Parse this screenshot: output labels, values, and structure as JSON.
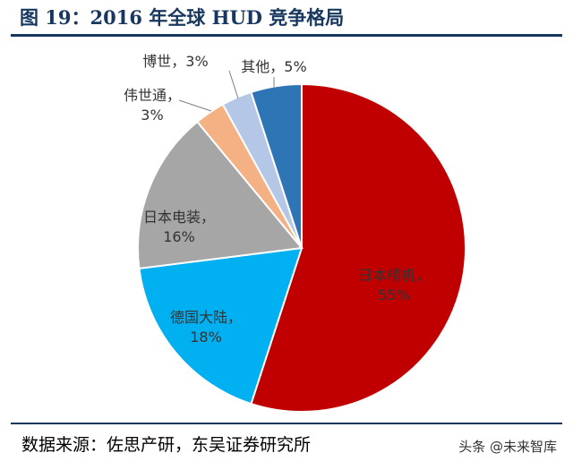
{
  "figure": {
    "title": "图 19：2016 年全球 HUD 竞争格局",
    "source": "数据来源：佐思产研，东吴证券研究所",
    "watermark": "头条 @未来智库"
  },
  "chart_data": {
    "type": "pie",
    "title": "",
    "start": "top",
    "direction": "clockwise",
    "slices": [
      {
        "name": "日本精机",
        "value": 55,
        "label": "55%",
        "color": "#c00000",
        "label_color": "#c00000"
      },
      {
        "name": "德国大陆",
        "value": 18,
        "label": "18%",
        "color": "#00b0f0",
        "label_color": "#333333"
      },
      {
        "name": "日本电装",
        "value": 16,
        "label": "16%",
        "color": "#a6a6a6",
        "label_color": "#333333"
      },
      {
        "name": "伟世通",
        "value": 3,
        "label": "3%",
        "color": "#f4b183",
        "label_color": "#333333"
      },
      {
        "name": "博世",
        "value": 3,
        "label": "3%",
        "color": "#b4c7e7",
        "label_color": "#333333"
      },
      {
        "name": "其他",
        "value": 5,
        "label": "5%",
        "color": "#2e75b6",
        "label_color": "#333333"
      }
    ]
  }
}
